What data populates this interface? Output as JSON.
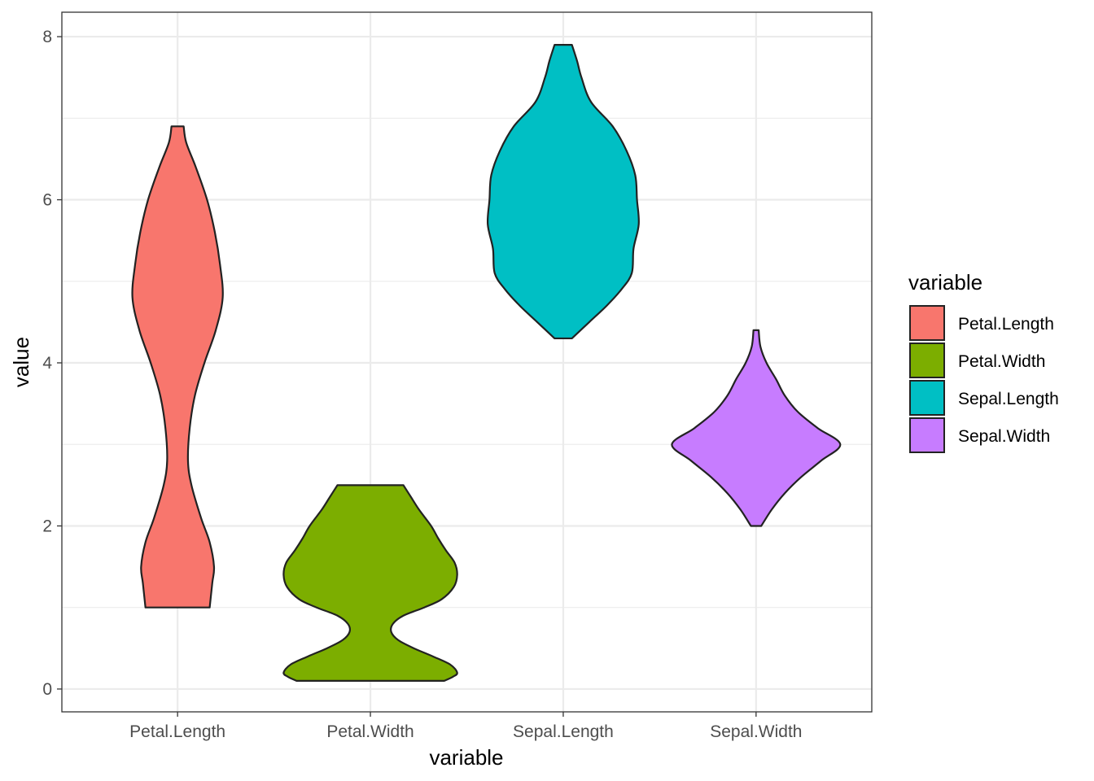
{
  "chart_data": {
    "type": "violin",
    "xlabel": "variable",
    "ylabel": "value",
    "ylim": [
      -0.28,
      8.3
    ],
    "y_ticks": [
      0,
      2,
      4,
      6,
      8
    ],
    "y_minor_ticks": [
      1,
      3,
      5,
      7
    ],
    "grid": true,
    "theme": "bw",
    "legend": {
      "title": "variable",
      "position": "right"
    },
    "categories": [
      "Petal.Length",
      "Petal.Width",
      "Sepal.Length",
      "Sepal.Width"
    ],
    "series": [
      {
        "name": "Petal.Length",
        "color": "#F8766D",
        "min": 1.0,
        "max": 6.9,
        "density": [
          [
            1.0,
            0.37
          ],
          [
            1.3,
            0.4
          ],
          [
            1.5,
            0.42
          ],
          [
            1.8,
            0.37
          ],
          [
            2.1,
            0.27
          ],
          [
            2.5,
            0.16
          ],
          [
            2.8,
            0.12
          ],
          [
            3.2,
            0.14
          ],
          [
            3.6,
            0.2
          ],
          [
            4.0,
            0.31
          ],
          [
            4.4,
            0.44
          ],
          [
            4.8,
            0.52
          ],
          [
            5.2,
            0.49
          ],
          [
            5.6,
            0.43
          ],
          [
            6.0,
            0.34
          ],
          [
            6.4,
            0.21
          ],
          [
            6.7,
            0.1
          ],
          [
            6.9,
            0.07
          ]
        ]
      },
      {
        "name": "Petal.Width",
        "color": "#7CAE00",
        "min": 0.1,
        "max": 2.5,
        "density": [
          [
            0.1,
            0.85
          ],
          [
            0.15,
            0.95
          ],
          [
            0.2,
            1.0
          ],
          [
            0.3,
            0.92
          ],
          [
            0.4,
            0.72
          ],
          [
            0.5,
            0.5
          ],
          [
            0.6,
            0.32
          ],
          [
            0.7,
            0.24
          ],
          [
            0.8,
            0.26
          ],
          [
            0.9,
            0.38
          ],
          [
            1.0,
            0.62
          ],
          [
            1.1,
            0.82
          ],
          [
            1.25,
            0.96
          ],
          [
            1.4,
            1.0
          ],
          [
            1.55,
            0.97
          ],
          [
            1.7,
            0.87
          ],
          [
            1.85,
            0.78
          ],
          [
            2.0,
            0.7
          ],
          [
            2.2,
            0.56
          ],
          [
            2.35,
            0.47
          ],
          [
            2.5,
            0.38
          ]
        ]
      },
      {
        "name": "Sepal.Length",
        "color": "#00BFC4",
        "min": 4.3,
        "max": 7.9,
        "density": [
          [
            4.3,
            0.1
          ],
          [
            4.5,
            0.3
          ],
          [
            4.7,
            0.5
          ],
          [
            4.9,
            0.67
          ],
          [
            5.1,
            0.79
          ],
          [
            5.4,
            0.81
          ],
          [
            5.7,
            0.87
          ],
          [
            6.0,
            0.85
          ],
          [
            6.3,
            0.83
          ],
          [
            6.6,
            0.73
          ],
          [
            6.9,
            0.57
          ],
          [
            7.2,
            0.32
          ],
          [
            7.5,
            0.21
          ],
          [
            7.7,
            0.16
          ],
          [
            7.9,
            0.1
          ]
        ]
      },
      {
        "name": "Sepal.Width",
        "color": "#C77CFF",
        "min": 2.0,
        "max": 4.4,
        "density": [
          [
            2.0,
            0.06
          ],
          [
            2.2,
            0.18
          ],
          [
            2.4,
            0.33
          ],
          [
            2.6,
            0.52
          ],
          [
            2.8,
            0.75
          ],
          [
            3.0,
            0.97
          ],
          [
            3.2,
            0.71
          ],
          [
            3.4,
            0.48
          ],
          [
            3.6,
            0.33
          ],
          [
            3.8,
            0.23
          ],
          [
            4.0,
            0.12
          ],
          [
            4.2,
            0.05
          ],
          [
            4.4,
            0.03
          ]
        ]
      }
    ]
  }
}
